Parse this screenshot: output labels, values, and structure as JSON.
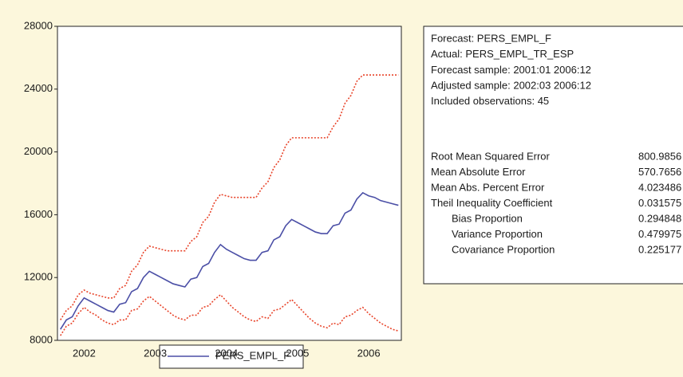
{
  "chart_data": {
    "type": "line",
    "categories": [
      null,
      null,
      null,
      null,
      "2002",
      null,
      null,
      null,
      null,
      null,
      null,
      null,
      null,
      null,
      null,
      null,
      "2003",
      null,
      null,
      null,
      null,
      null,
      null,
      null,
      null,
      null,
      null,
      null,
      "2004",
      null,
      null,
      null,
      null,
      null,
      null,
      null,
      null,
      null,
      null,
      null,
      "2005",
      null,
      null,
      null,
      null,
      null,
      null,
      null,
      null,
      null,
      null,
      null,
      "2006",
      null,
      null,
      null,
      null,
      null
    ],
    "series": [
      {
        "name": "PERS_EMPL_F",
        "color": "#4b4fa6",
        "values": [
          8700,
          9300,
          9500,
          10200,
          10700,
          10500,
          10300,
          10100,
          9900,
          9800,
          10300,
          10400,
          11100,
          11300,
          12000,
          12400,
          12200,
          12000,
          11800,
          11600,
          11500,
          11400,
          11900,
          12000,
          12700,
          12900,
          13600,
          14100,
          13800,
          13600,
          13400,
          13200,
          13100,
          13100,
          13600,
          13700,
          14400,
          14600,
          15300,
          15700,
          15500,
          15300,
          15100,
          14900,
          14800,
          14800,
          15300,
          15400,
          16100,
          16300,
          17000,
          17400,
          17200,
          17100,
          16900,
          16800,
          16700,
          16600
        ]
      },
      {
        "color": "#e8442a",
        "values": [
          9300,
          9900,
          10200,
          10900,
          11200,
          11000,
          10900,
          10800,
          10700,
          10700,
          11300,
          11500,
          12400,
          12800,
          13600,
          14000,
          13900,
          13800,
          13700,
          13700,
          13700,
          13700,
          14300,
          14600,
          15500,
          15900,
          16800,
          17300,
          17200,
          17100,
          17100,
          17100,
          17100,
          17100,
          17700,
          18100,
          19000,
          19500,
          20400,
          20900,
          20900,
          20900,
          20900,
          20900,
          20900,
          20900,
          21600,
          22100,
          23100,
          23600,
          24500,
          24900,
          24900,
          24900,
          24900,
          24900,
          24900,
          24900
        ]
      },
      {
        "color": "#e8442a",
        "values": [
          8300,
          8900,
          9100,
          9700,
          10100,
          9800,
          9600,
          9300,
          9100,
          9000,
          9300,
          9300,
          9900,
          10000,
          10500,
          10800,
          10500,
          10200,
          9900,
          9600,
          9400,
          9300,
          9600,
          9600,
          10100,
          10200,
          10600,
          10900,
          10500,
          10100,
          9800,
          9500,
          9300,
          9200,
          9500,
          9400,
          9900,
          10000,
          10300,
          10600,
          10200,
          9800,
          9400,
          9100,
          8900,
          8800,
          9100,
          9000,
          9500,
          9600,
          9900,
          10100,
          9700,
          9400,
          9100,
          8900,
          8700,
          8600
        ]
      }
    ],
    "ylim": [
      8000,
      28000
    ],
    "yticks": [
      8000,
      12000,
      16000,
      20000,
      24000,
      28000
    ],
    "grid": false
  },
  "stats_panel": {
    "lines": [
      "Forecast: PERS_EMPL_F",
      "Actual: PERS_EMPL_TR_ESP",
      "Forecast sample: 2001:01 2006:12",
      "Adjusted sample: 2002:03 2006:12",
      "Included observations: 45"
    ],
    "stats": [
      {
        "label": "Root Mean Squared Error",
        "value": 800.9856
      },
      {
        "label": "Mean Absolute Error",
        "value": 570.7656
      },
      {
        "label": "Mean Abs. Percent Error",
        "value": 4.023486
      },
      {
        "label": "Theil Inequality Coefficient",
        "value": 0.031575
      },
      {
        "label": "Bias Proportion",
        "value": 0.294848
      },
      {
        "label": "Variance Proportion",
        "value": 0.479975
      },
      {
        "label": "Covariance Proportion",
        "value": 0.225177
      }
    ]
  }
}
